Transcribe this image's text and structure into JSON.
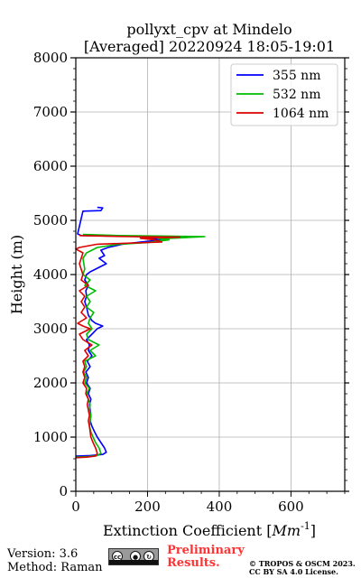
{
  "chart_data": {
    "type": "line",
    "title": "pollyxt_cpv at Mindelo",
    "subtitle": "[Averaged] 20220924 18:05-19:01",
    "xlabel": "Extinction Coefficient",
    "xlabel_unit_main": "Mm",
    "xlabel_unit_exp": "-1",
    "ylabel": "Height (m)",
    "xlim": [
      0,
      750
    ],
    "ylim": [
      0,
      8000
    ],
    "xticks": [
      0,
      200,
      400,
      600
    ],
    "yticks": [
      0,
      1000,
      2000,
      3000,
      4000,
      5000,
      6000,
      7000,
      8000
    ],
    "grid": true,
    "legend_position": "top-right",
    "series": [
      {
        "name": "355 nm",
        "color": "#0000ff",
        "points": [
          [
            0,
            650
          ],
          [
            40,
            660
          ],
          [
            75,
            680
          ],
          [
            85,
            720
          ],
          [
            80,
            800
          ],
          [
            70,
            900
          ],
          [
            60,
            1000
          ],
          [
            52,
            1100
          ],
          [
            45,
            1200
          ],
          [
            40,
            1300
          ],
          [
            42,
            1400
          ],
          [
            40,
            1500
          ],
          [
            38,
            1600
          ],
          [
            42,
            1700
          ],
          [
            35,
            1800
          ],
          [
            40,
            1900
          ],
          [
            30,
            2000
          ],
          [
            35,
            2100
          ],
          [
            28,
            2200
          ],
          [
            40,
            2300
          ],
          [
            32,
            2400
          ],
          [
            45,
            2500
          ],
          [
            35,
            2600
          ],
          [
            38,
            2700
          ],
          [
            30,
            2800
          ],
          [
            45,
            2900
          ],
          [
            60,
            3000
          ],
          [
            75,
            3050
          ],
          [
            55,
            3100
          ],
          [
            45,
            3150
          ],
          [
            35,
            3250
          ],
          [
            30,
            3400
          ],
          [
            25,
            3500
          ],
          [
            30,
            3600
          ],
          [
            28,
            3700
          ],
          [
            35,
            3800
          ],
          [
            25,
            3900
          ],
          [
            30,
            4000
          ],
          [
            40,
            4050
          ],
          [
            55,
            4100
          ],
          [
            70,
            4150
          ],
          [
            85,
            4200
          ],
          [
            65,
            4300
          ],
          [
            80,
            4350
          ],
          [
            70,
            4450
          ],
          [
            90,
            4500
          ],
          [
            130,
            4560
          ],
          [
            180,
            4600
          ],
          [
            240,
            4640
          ],
          [
            200,
            4670
          ],
          [
            190,
            4700
          ],
          [
            15,
            4720
          ],
          [
            5,
            4750
          ],
          [
            20,
            5170
          ],
          [
            70,
            5180
          ],
          [
            75,
            5230
          ],
          [
            60,
            5240
          ]
        ]
      },
      {
        "name": "532 nm",
        "color": "#00bb00",
        "points": [
          [
            0,
            630
          ],
          [
            35,
            640
          ],
          [
            60,
            660
          ],
          [
            70,
            700
          ],
          [
            65,
            800
          ],
          [
            55,
            900
          ],
          [
            48,
            1000
          ],
          [
            42,
            1100
          ],
          [
            38,
            1200
          ],
          [
            40,
            1300
          ],
          [
            42,
            1400
          ],
          [
            38,
            1500
          ],
          [
            40,
            1600
          ],
          [
            35,
            1700
          ],
          [
            30,
            1800
          ],
          [
            38,
            1900
          ],
          [
            25,
            2000
          ],
          [
            30,
            2100
          ],
          [
            22,
            2200
          ],
          [
            30,
            2300
          ],
          [
            25,
            2400
          ],
          [
            55,
            2500
          ],
          [
            40,
            2600
          ],
          [
            65,
            2700
          ],
          [
            35,
            2800
          ],
          [
            30,
            2900
          ],
          [
            45,
            3000
          ],
          [
            35,
            3100
          ],
          [
            40,
            3200
          ],
          [
            50,
            3300
          ],
          [
            30,
            3400
          ],
          [
            40,
            3500
          ],
          [
            30,
            3600
          ],
          [
            55,
            3700
          ],
          [
            25,
            3800
          ],
          [
            40,
            3900
          ],
          [
            20,
            4000
          ],
          [
            25,
            4100
          ],
          [
            20,
            4300
          ],
          [
            30,
            4400
          ],
          [
            60,
            4500
          ],
          [
            120,
            4560
          ],
          [
            200,
            4590
          ],
          [
            260,
            4640
          ],
          [
            230,
            4660
          ],
          [
            300,
            4680
          ],
          [
            360,
            4700
          ],
          [
            250,
            4710
          ],
          [
            120,
            4720
          ],
          [
            20,
            4740
          ]
        ]
      },
      {
        "name": "1064 nm",
        "color": "#dd0000",
        "points": [
          [
            0,
            620
          ],
          [
            30,
            630
          ],
          [
            55,
            650
          ],
          [
            60,
            700
          ],
          [
            55,
            800
          ],
          [
            48,
            900
          ],
          [
            42,
            1000
          ],
          [
            40,
            1100
          ],
          [
            38,
            1200
          ],
          [
            35,
            1300
          ],
          [
            38,
            1400
          ],
          [
            35,
            1500
          ],
          [
            32,
            1600
          ],
          [
            35,
            1700
          ],
          [
            28,
            1800
          ],
          [
            30,
            1900
          ],
          [
            20,
            2000
          ],
          [
            25,
            2100
          ],
          [
            20,
            2200
          ],
          [
            25,
            2300
          ],
          [
            20,
            2400
          ],
          [
            35,
            2500
          ],
          [
            25,
            2600
          ],
          [
            45,
            2700
          ],
          [
            20,
            2800
          ],
          [
            10,
            2900
          ],
          [
            40,
            3000
          ],
          [
            20,
            3050
          ],
          [
            5,
            3100
          ],
          [
            30,
            3200
          ],
          [
            15,
            3300
          ],
          [
            25,
            3400
          ],
          [
            15,
            3500
          ],
          [
            25,
            3600
          ],
          [
            10,
            3700
          ],
          [
            35,
            3800
          ],
          [
            15,
            3900
          ],
          [
            20,
            4000
          ],
          [
            10,
            4200
          ],
          [
            15,
            4300
          ],
          [
            20,
            4400
          ],
          [
            0,
            4470
          ],
          [
            10,
            4500
          ],
          [
            60,
            4560
          ],
          [
            150,
            4580
          ],
          [
            240,
            4600
          ],
          [
            220,
            4640
          ],
          [
            180,
            4670
          ],
          [
            290,
            4690
          ],
          [
            150,
            4700
          ],
          [
            80,
            4710
          ],
          [
            10,
            4720
          ]
        ]
      }
    ]
  },
  "footer": {
    "version": "Version: 3.6",
    "method": "Method: Raman",
    "preliminary_line1": "Preliminary",
    "preliminary_line2": "Results.",
    "copyright_line1": "© TROPOS & OSCM 2023.",
    "copyright_line2": "CC BY SA 4.0 License."
  },
  "license_badge": {
    "icons": [
      "cc-icon",
      "by-icon",
      "sa-icon"
    ]
  }
}
